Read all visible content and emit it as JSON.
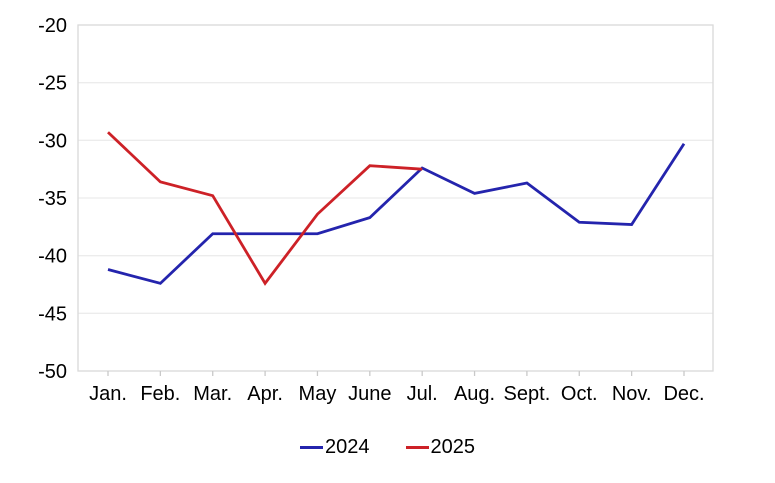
{
  "chart_data": {
    "type": "line",
    "title": "",
    "xlabel": "",
    "ylabel": "",
    "categories": [
      "Jan.",
      "Feb.",
      "Mar.",
      "Apr.",
      "May",
      "June",
      "Jul.",
      "Aug.",
      "Sept.",
      "Oct.",
      "Nov.",
      "Dec."
    ],
    "series": [
      {
        "name": "2024",
        "color": "#2424ad",
        "values": [
          -41.2,
          -42.4,
          -38.1,
          -38.1,
          -38.1,
          -36.7,
          -32.4,
          -34.6,
          -33.7,
          -37.1,
          -37.3,
          -30.3
        ]
      },
      {
        "name": "2025",
        "color": "#cd2127",
        "values": [
          -29.3,
          -33.6,
          -34.8,
          -42.4,
          -36.4,
          -32.2,
          -32.5
        ]
      }
    ],
    "ylim": [
      -50,
      -20
    ],
    "yticks": [
      -20,
      -25,
      -30,
      -35,
      -40,
      -45,
      -50
    ],
    "grid": "horizontal-only",
    "legend_position": "bottom-center",
    "styles": {
      "background": "#ffffff",
      "grid_color": "#ececec",
      "frame_color": "#d9d9d9",
      "tick_color": "#c9c9c9",
      "text_color": "#000000",
      "line_width": 2.8,
      "label_font_size": 20
    }
  }
}
